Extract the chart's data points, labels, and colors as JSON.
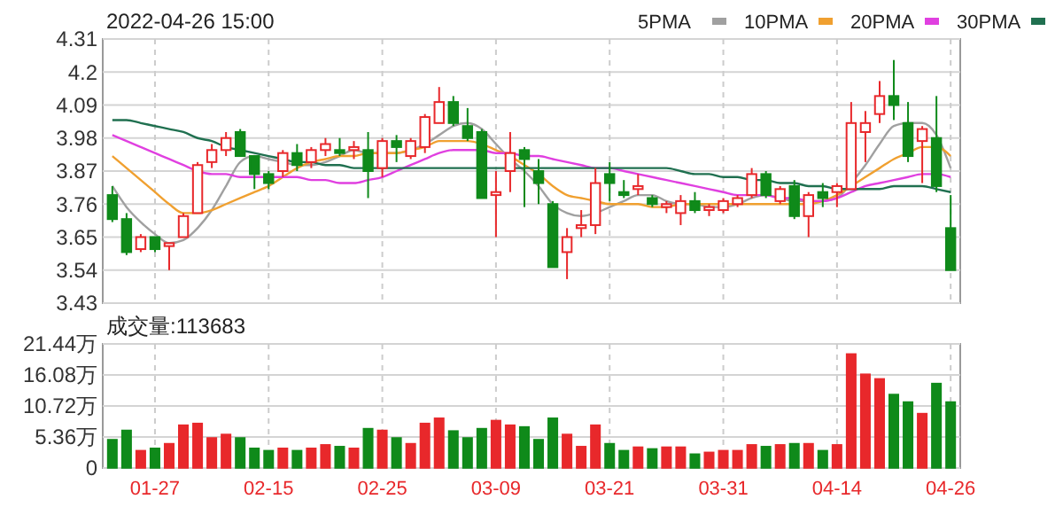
{
  "chart_data": [
    {
      "type": "candlestick",
      "title": "2022-04-26 15:00",
      "categories": [
        null,
        null,
        null,
        null,
        null,
        null,
        null,
        null,
        null,
        null,
        null,
        null,
        null,
        null,
        null,
        null,
        null,
        null,
        null,
        null,
        null,
        null,
        null,
        null,
        null,
        null,
        null,
        null,
        null,
        null,
        null,
        null,
        null,
        null,
        null,
        null,
        null,
        null,
        null,
        null,
        null,
        null,
        null,
        null,
        null,
        null,
        null,
        null,
        null,
        null,
        null,
        null,
        null,
        null,
        null,
        null,
        null,
        null,
        null,
        null
      ],
      "ohlc": [
        [
          3.79,
          3.82,
          3.7,
          3.71
        ],
        [
          3.71,
          3.73,
          3.59,
          3.6
        ],
        [
          3.61,
          3.66,
          3.6,
          3.65
        ],
        [
          3.65,
          3.65,
          3.6,
          3.61
        ],
        [
          3.62,
          3.63,
          3.54,
          3.63
        ],
        [
          3.65,
          3.73,
          3.65,
          3.72
        ],
        [
          3.73,
          3.9,
          3.73,
          3.89
        ],
        [
          3.9,
          3.96,
          3.88,
          3.94
        ],
        [
          3.94,
          4.0,
          3.92,
          3.98
        ],
        [
          4.0,
          4.01,
          3.92,
          3.92
        ],
        [
          3.92,
          3.92,
          3.81,
          3.86
        ],
        [
          3.86,
          3.87,
          3.81,
          3.83
        ],
        [
          3.87,
          3.94,
          3.85,
          3.93
        ],
        [
          3.93,
          3.96,
          3.87,
          3.89
        ],
        [
          3.9,
          3.95,
          3.88,
          3.94
        ],
        [
          3.94,
          3.98,
          3.92,
          3.96
        ],
        [
          3.94,
          3.98,
          3.92,
          3.93
        ],
        [
          3.94,
          3.97,
          3.91,
          3.95
        ],
        [
          3.94,
          4.0,
          3.78,
          3.87
        ],
        [
          3.88,
          3.98,
          3.85,
          3.97
        ],
        [
          3.97,
          3.99,
          3.9,
          3.95
        ],
        [
          3.92,
          3.98,
          3.91,
          3.97
        ],
        [
          3.95,
          4.06,
          3.93,
          4.05
        ],
        [
          4.03,
          4.15,
          4.03,
          4.1
        ],
        [
          4.1,
          4.12,
          4.02,
          4.03
        ],
        [
          4.02,
          4.08,
          3.97,
          3.98
        ],
        [
          4.0,
          4.01,
          3.78,
          3.78
        ],
        [
          3.79,
          3.87,
          3.65,
          3.8
        ],
        [
          3.87,
          4.0,
          3.8,
          3.93
        ],
        [
          3.94,
          3.95,
          3.75,
          3.91
        ],
        [
          3.87,
          3.91,
          3.76,
          3.83
        ],
        [
          3.76,
          3.77,
          3.55,
          3.55
        ],
        [
          3.6,
          3.68,
          3.51,
          3.65
        ],
        [
          3.68,
          3.74,
          3.65,
          3.69
        ],
        [
          3.69,
          3.88,
          3.66,
          3.83
        ],
        [
          3.86,
          3.9,
          3.77,
          3.83
        ],
        [
          3.8,
          3.84,
          3.78,
          3.79
        ],
        [
          3.81,
          3.86,
          3.79,
          3.82
        ],
        [
          3.78,
          3.79,
          3.75,
          3.76
        ],
        [
          3.75,
          3.77,
          3.73,
          3.76
        ],
        [
          3.73,
          3.79,
          3.69,
          3.77
        ],
        [
          3.77,
          3.8,
          3.73,
          3.74
        ],
        [
          3.74,
          3.76,
          3.72,
          3.75
        ],
        [
          3.74,
          3.78,
          3.73,
          3.77
        ],
        [
          3.76,
          3.79,
          3.75,
          3.78
        ],
        [
          3.79,
          3.88,
          3.78,
          3.86
        ],
        [
          3.86,
          3.87,
          3.78,
          3.79
        ],
        [
          3.77,
          3.82,
          3.76,
          3.81
        ],
        [
          3.82,
          3.84,
          3.71,
          3.72
        ],
        [
          3.72,
          3.8,
          3.65,
          3.79
        ],
        [
          3.8,
          3.83,
          3.75,
          3.78
        ],
        [
          3.8,
          3.83,
          3.75,
          3.82
        ],
        [
          3.81,
          4.1,
          3.81,
          4.03
        ],
        [
          4.0,
          4.07,
          3.9,
          4.03
        ],
        [
          4.06,
          4.17,
          4.03,
          4.12
        ],
        [
          4.12,
          4.24,
          4.04,
          4.09
        ],
        [
          4.03,
          4.1,
          3.9,
          3.92
        ],
        [
          3.97,
          4.02,
          3.83,
          4.01
        ],
        [
          3.98,
          4.12,
          3.8,
          3.82
        ],
        [
          3.68,
          3.79,
          3.54,
          3.54
        ]
      ],
      "colors": [
        "#0f8a1a",
        "#0f8a1a",
        "#e8282b",
        "#0f8a1a",
        "#e8282b",
        "#e8282b",
        "#e8282b",
        "#e8282b",
        "#e8282b",
        "#0f8a1a",
        "#0f8a1a",
        "#0f8a1a",
        "#e8282b",
        "#0f8a1a",
        "#e8282b",
        "#e8282b",
        "#0f8a1a",
        "#e8282b",
        "#0f8a1a",
        "#e8282b",
        "#0f8a1a",
        "#e8282b",
        "#e8282b",
        "#e8282b",
        "#0f8a1a",
        "#0f8a1a",
        "#0f8a1a",
        "#e8282b",
        "#e8282b",
        "#0f8a1a",
        "#0f8a1a",
        "#0f8a1a",
        "#e8282b",
        "#e8282b",
        "#e8282b",
        "#0f8a1a",
        "#0f8a1a",
        "#e8282b",
        "#0f8a1a",
        "#e8282b",
        "#e8282b",
        "#0f8a1a",
        "#e8282b",
        "#e8282b",
        "#e8282b",
        "#e8282b",
        "#0f8a1a",
        "#e8282b",
        "#0f8a1a",
        "#e8282b",
        "#0f8a1a",
        "#e8282b",
        "#e8282b",
        "#e8282b",
        "#e8282b",
        "#0f8a1a",
        "#0f8a1a",
        "#e8282b",
        "#0f8a1a",
        "#0f8a1a"
      ],
      "series": [
        {
          "type": "line",
          "name": "5PMA",
          "color": "#a0a0a0",
          "values": [
            3.82,
            3.75,
            3.7,
            3.66,
            3.63,
            3.64,
            3.68,
            3.74,
            3.82,
            3.9,
            3.92,
            3.91,
            3.9,
            3.89,
            3.89,
            3.9,
            3.92,
            3.94,
            3.93,
            3.93,
            3.93,
            3.94,
            3.96,
            3.99,
            4.02,
            4.03,
            4.01,
            3.96,
            3.91,
            3.87,
            3.82,
            3.76,
            3.73,
            3.72,
            3.73,
            3.75,
            3.77,
            3.79,
            3.79,
            3.77,
            3.76,
            3.76,
            3.75,
            3.75,
            3.76,
            3.78,
            3.79,
            3.78,
            3.77,
            3.77,
            3.77,
            3.78,
            3.83,
            3.89,
            3.96,
            4.02,
            4.03,
            4.03,
            3.99,
            3.88
          ]
        },
        {
          "type": "line",
          "name": "10PMA",
          "color": "#f0a030",
          "values": [
            3.92,
            3.88,
            3.84,
            3.8,
            3.76,
            3.73,
            3.73,
            3.74,
            3.76,
            3.78,
            3.8,
            3.82,
            3.85,
            3.88,
            3.9,
            3.91,
            3.92,
            3.92,
            3.93,
            3.93,
            3.93,
            3.94,
            3.95,
            3.97,
            3.97,
            3.97,
            3.96,
            3.94,
            3.92,
            3.89,
            3.86,
            3.82,
            3.79,
            3.78,
            3.77,
            3.76,
            3.76,
            3.76,
            3.75,
            3.75,
            3.76,
            3.76,
            3.76,
            3.76,
            3.76,
            3.76,
            3.76,
            3.76,
            3.76,
            3.76,
            3.77,
            3.79,
            3.82,
            3.85,
            3.88,
            3.91,
            3.93,
            3.95,
            3.95,
            3.92
          ]
        },
        {
          "type": "line",
          "name": "20PMA",
          "color": "#e040e0",
          "values": [
            3.99,
            3.97,
            3.95,
            3.93,
            3.91,
            3.89,
            3.87,
            3.86,
            3.86,
            3.85,
            3.85,
            3.85,
            3.85,
            3.85,
            3.84,
            3.84,
            3.83,
            3.83,
            3.84,
            3.85,
            3.87,
            3.89,
            3.91,
            3.93,
            3.94,
            3.94,
            3.94,
            3.93,
            3.93,
            3.92,
            3.92,
            3.91,
            3.9,
            3.89,
            3.88,
            3.88,
            3.87,
            3.86,
            3.85,
            3.84,
            3.83,
            3.82,
            3.81,
            3.8,
            3.79,
            3.79,
            3.79,
            3.78,
            3.78,
            3.77,
            3.77,
            3.78,
            3.8,
            3.82,
            3.83,
            3.84,
            3.85,
            3.86,
            3.86,
            3.85
          ]
        },
        {
          "type": "line",
          "name": "30PMA",
          "color": "#207050",
          "values": [
            4.04,
            4.04,
            4.03,
            4.02,
            4.01,
            4.0,
            3.98,
            3.97,
            3.95,
            3.94,
            3.93,
            3.92,
            3.91,
            3.9,
            3.9,
            3.89,
            3.89,
            3.88,
            3.88,
            3.88,
            3.88,
            3.88,
            3.88,
            3.88,
            3.88,
            3.88,
            3.88,
            3.88,
            3.88,
            3.88,
            3.88,
            3.88,
            3.88,
            3.88,
            3.88,
            3.88,
            3.88,
            3.88,
            3.88,
            3.88,
            3.87,
            3.86,
            3.86,
            3.85,
            3.85,
            3.84,
            3.84,
            3.83,
            3.83,
            3.82,
            3.82,
            3.81,
            3.81,
            3.81,
            3.81,
            3.82,
            3.82,
            3.82,
            3.81,
            3.8
          ]
        }
      ],
      "ylim": [
        3.43,
        4.31
      ],
      "yticks": [
        3.43,
        3.54,
        3.65,
        3.76,
        3.87,
        3.98,
        4.09,
        4.2,
        4.31
      ],
      "grid": true,
      "legend": "top right",
      "tick_labels": "y"
    },
    {
      "type": "bar",
      "title": "成交量:113683",
      "categories": [
        null,
        null,
        null,
        "01-27",
        null,
        null,
        null,
        null,
        null,
        null,
        null,
        "02-15",
        null,
        null,
        null,
        null,
        null,
        null,
        null,
        "02-25",
        null,
        null,
        null,
        null,
        null,
        null,
        null,
        "03-09",
        null,
        null,
        null,
        null,
        null,
        null,
        null,
        "03-21",
        null,
        null,
        null,
        null,
        null,
        null,
        null,
        "03-31",
        null,
        null,
        null,
        null,
        null,
        null,
        null,
        "04-14",
        null,
        null,
        null,
        null,
        null,
        null,
        null,
        "04-26"
      ],
      "values": [
        4.9,
        6.5,
        3.0,
        3.4,
        4.2,
        7.4,
        7.7,
        5.2,
        5.8,
        5.2,
        3.4,
        3.0,
        3.4,
        3.0,
        3.4,
        4.0,
        3.7,
        3.4,
        6.8,
        6.5,
        5.2,
        4.2,
        7.7,
        8.6,
        6.4,
        5.2,
        6.8,
        8.2,
        7.4,
        7.1,
        4.9,
        8.6,
        5.8,
        3.7,
        7.4,
        4.2,
        3.0,
        3.6,
        3.3,
        3.6,
        3.6,
        2.4,
        2.7,
        3.0,
        3.0,
        4.0,
        3.7,
        4.0,
        4.2,
        4.2,
        3.0,
        4.0,
        19.7,
        16.2,
        15.4,
        12.7,
        11.4,
        9.4,
        14.6,
        11.4
      ],
      "colors": [
        "#0f8a1a",
        "#0f8a1a",
        "#e8282b",
        "#0f8a1a",
        "#e8282b",
        "#e8282b",
        "#e8282b",
        "#e8282b",
        "#e8282b",
        "#0f8a1a",
        "#0f8a1a",
        "#0f8a1a",
        "#e8282b",
        "#0f8a1a",
        "#e8282b",
        "#e8282b",
        "#0f8a1a",
        "#e8282b",
        "#0f8a1a",
        "#e8282b",
        "#0f8a1a",
        "#e8282b",
        "#e8282b",
        "#e8282b",
        "#0f8a1a",
        "#0f8a1a",
        "#0f8a1a",
        "#e8282b",
        "#e8282b",
        "#0f8a1a",
        "#0f8a1a",
        "#0f8a1a",
        "#e8282b",
        "#e8282b",
        "#e8282b",
        "#0f8a1a",
        "#0f8a1a",
        "#e8282b",
        "#0f8a1a",
        "#e8282b",
        "#e8282b",
        "#0f8a1a",
        "#e8282b",
        "#e8282b",
        "#e8282b",
        "#e8282b",
        "#0f8a1a",
        "#e8282b",
        "#0f8a1a",
        "#e8282b",
        "#0f8a1a",
        "#e8282b",
        "#e8282b",
        "#e8282b",
        "#e8282b",
        "#0f8a1a",
        "#0f8a1a",
        "#e8282b",
        "#0f8a1a",
        "#0f8a1a"
      ],
      "ylim": [
        0,
        21.44
      ],
      "yticks": [
        0,
        {
          "value": 5.36,
          "label": "5.36万"
        },
        {
          "value": 10.72,
          "label": "10.72万"
        },
        {
          "value": 16.08,
          "label": "16.08万"
        },
        {
          "value": 21.44,
          "label": "21.44万"
        }
      ],
      "grid": true
    }
  ]
}
